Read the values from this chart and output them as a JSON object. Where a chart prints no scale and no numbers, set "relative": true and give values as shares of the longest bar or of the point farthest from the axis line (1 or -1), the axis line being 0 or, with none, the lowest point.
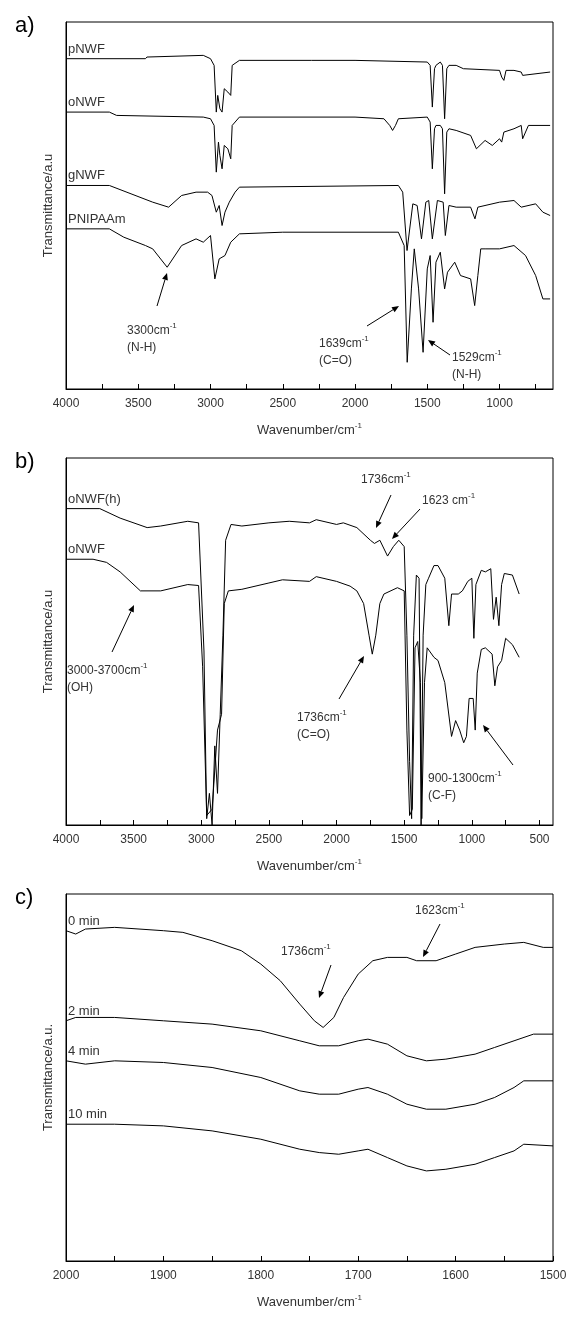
{
  "chart_data": [
    {
      "type": "line",
      "title": "a)",
      "xlabel": "Wavenumber/cm$^{-1}$",
      "ylabel": "Transmittance/a.u",
      "relative": true,
      "xlim": [
        4000,
        630
      ],
      "xticks": [
        4000,
        {
          "value": 3750,
          "label": null
        },
        3500,
        {
          "value": 3250,
          "label": null
        },
        3000,
        {
          "value": 2750,
          "label": null
        },
        2500,
        {
          "value": 2250,
          "label": null
        },
        2000,
        {
          "value": 1750,
          "label": null
        },
        1500,
        {
          "value": 1250,
          "label": null
        },
        1000,
        {
          "value": 750,
          "label": null
        }
      ],
      "series": [
        {
          "name": "pNWF",
          "color": "#000000",
          "x": [
            4000,
            3450,
            3440,
            3050,
            3000,
            2975,
            2960,
            2950,
            2935,
            2920,
            2905,
            2880,
            2860,
            2850,
            2800,
            2300,
            2000,
            1500,
            1480,
            1465,
            1450,
            1440,
            1410,
            1395,
            1380,
            1365,
            1350,
            1300,
            1250,
            1000,
            985,
            970,
            955,
            900,
            850,
            840,
            650
          ],
          "values": [
            0.99,
            0.99,
            0.995,
            1.0,
            0.99,
            0.97,
            0.83,
            0.88,
            0.84,
            0.83,
            0.9,
            0.89,
            0.88,
            0.97,
            0.985,
            0.985,
            0.985,
            0.98,
            0.97,
            0.845,
            0.96,
            0.97,
            0.98,
            0.97,
            0.81,
            0.96,
            0.97,
            0.97,
            0.96,
            0.955,
            0.935,
            0.925,
            0.955,
            0.955,
            0.95,
            0.94,
            0.95
          ]
        },
        {
          "name": "oNWF",
          "color": "#000000",
          "x": [
            4000,
            3700,
            3650,
            3050,
            3000,
            2975,
            2960,
            2945,
            2935,
            2920,
            2905,
            2880,
            2860,
            2850,
            2800,
            2000,
            1800,
            1760,
            1740,
            1720,
            1700,
            1500,
            1480,
            1465,
            1450,
            1440,
            1410,
            1395,
            1380,
            1365,
            1350,
            1300,
            1200,
            1160,
            1100,
            1050,
            1000,
            985,
            970,
            900,
            850,
            840,
            800,
            650
          ],
          "values": [
            0.83,
            0.83,
            0.82,
            0.815,
            0.81,
            0.79,
            0.65,
            0.74,
            0.7,
            0.66,
            0.73,
            0.72,
            0.69,
            0.79,
            0.815,
            0.815,
            0.81,
            0.79,
            0.775,
            0.79,
            0.81,
            0.815,
            0.8,
            0.66,
            0.78,
            0.79,
            0.79,
            0.78,
            0.585,
            0.77,
            0.78,
            0.775,
            0.76,
            0.72,
            0.745,
            0.73,
            0.75,
            0.74,
            0.77,
            0.78,
            0.79,
            0.75,
            0.79,
            0.79
          ]
        },
        {
          "name": "gNWF",
          "color": "#000000",
          "x": [
            4000,
            3700,
            3550,
            3400,
            3290,
            3200,
            3100,
            3020,
            2990,
            2960,
            2940,
            2920,
            2900,
            2870,
            2830,
            2800,
            1700,
            1670,
            1640,
            1600,
            1570,
            1540,
            1510,
            1490,
            1465,
            1430,
            1390,
            1375,
            1350,
            1300,
            1200,
            1170,
            1150,
            1000,
            900,
            850,
            750,
            700,
            650
          ],
          "values": [
            0.61,
            0.61,
            0.585,
            0.56,
            0.545,
            0.58,
            0.59,
            0.59,
            0.58,
            0.53,
            0.55,
            0.49,
            0.53,
            0.56,
            0.59,
            0.605,
            0.61,
            0.59,
            0.415,
            0.555,
            0.55,
            0.45,
            0.56,
            0.565,
            0.45,
            0.565,
            0.56,
            0.46,
            0.55,
            0.545,
            0.545,
            0.51,
            0.545,
            0.56,
            0.565,
            0.545,
            0.555,
            0.53,
            0.52
          ]
        },
        {
          "name": "PNIPAAm",
          "color": "#000000",
          "x": [
            4000,
            3700,
            3600,
            3450,
            3400,
            3300,
            3200,
            3100,
            3050,
            3000,
            2970,
            2940,
            2900,
            2860,
            2800,
            2500,
            1700,
            1660,
            1639,
            1610,
            1590,
            1560,
            1529,
            1500,
            1480,
            1460,
            1440,
            1410,
            1380,
            1360,
            1310,
            1270,
            1200,
            1172,
            1150,
            1130,
            1100,
            1000,
            900,
            820,
            750,
            700,
            650
          ],
          "values": [
            0.48,
            0.48,
            0.455,
            0.43,
            0.42,
            0.365,
            0.43,
            0.45,
            0.44,
            0.46,
            0.33,
            0.39,
            0.4,
            0.44,
            0.465,
            0.47,
            0.47,
            0.43,
            0.08,
            0.3,
            0.42,
            0.3,
            0.11,
            0.36,
            0.4,
            0.2,
            0.38,
            0.41,
            0.3,
            0.35,
            0.38,
            0.34,
            0.33,
            0.25,
            0.34,
            0.42,
            0.42,
            0.42,
            0.43,
            0.4,
            0.34,
            0.27,
            0.27
          ]
        }
      ],
      "annotations": [
        "3300cm$^{-1}$\n(N-H)",
        "1639cm$^{-1}$\n(C=O)",
        "1529cm$^{-1}$\n(N-H)"
      ]
    },
    {
      "type": "line",
      "title": "b)",
      "xlabel": "Wavenumber/cm$^{-1}$",
      "ylabel": "Transmittance/a.u",
      "relative": true,
      "xlim": [
        4000,
        400
      ],
      "xticks": [
        4000,
        {
          "value": 3750,
          "label": null
        },
        3500,
        {
          "value": 3250,
          "label": null
        },
        3000,
        {
          "value": 2750,
          "label": null
        },
        2500,
        {
          "value": 2250,
          "label": null
        },
        2000,
        {
          "value": 1750,
          "label": null
        },
        1500,
        {
          "value": 1250,
          "label": null
        },
        1000,
        {
          "value": 750,
          "label": null
        },
        500
      ],
      "series": [
        {
          "name": "oNWF(h)",
          "color": "#000000",
          "x": [
            4000,
            3750,
            3600,
            3400,
            3300,
            3100,
            3020,
            2980,
            2960,
            2940,
            2920,
            2900,
            2880,
            2860,
            2840,
            2820,
            2780,
            2700,
            2500,
            2350,
            2200,
            2150,
            2000,
            1950,
            1850,
            1750,
            1720,
            1680,
            1623,
            1580,
            1540,
            1500,
            1480,
            1460,
            1445,
            1430,
            1410,
            1390,
            1375,
            1360,
            1340,
            1320,
            1280,
            1250,
            1200,
            1170,
            1150,
            1100,
            1070,
            1030,
            1000,
            985,
            970,
            930,
            900,
            860,
            840,
            820,
            800,
            780,
            760,
            700,
            650
          ],
          "values": [
            1.0,
            1.0,
            0.97,
            0.94,
            0.945,
            0.96,
            0.955,
            0.55,
            0.02,
            0.1,
            0.0,
            0.25,
            0.1,
            0.35,
            0.6,
            0.9,
            0.95,
            0.945,
            0.955,
            0.96,
            0.955,
            0.965,
            0.95,
            0.955,
            0.94,
            0.9,
            0.89,
            0.9,
            0.85,
            0.88,
            0.9,
            0.88,
            0.6,
            0.2,
            0.02,
            0.6,
            0.79,
            0.78,
            0.0,
            0.6,
            0.76,
            0.78,
            0.82,
            0.82,
            0.78,
            0.63,
            0.73,
            0.73,
            0.74,
            0.77,
            0.78,
            0.59,
            0.76,
            0.805,
            0.8,
            0.81,
            0.65,
            0.72,
            0.63,
            0.76,
            0.795,
            0.79,
            0.73
          ]
        },
        {
          "name": "oNWF",
          "color": "#000000",
          "x": [
            4000,
            3800,
            3700,
            3600,
            3450,
            3300,
            3100,
            3020,
            2990,
            2960,
            2920,
            2880,
            2850,
            2830,
            2800,
            2700,
            2500,
            2400,
            2200,
            2150,
            2000,
            1900,
            1850,
            1800,
            1760,
            1736,
            1710,
            1680,
            1650,
            1550,
            1500,
            1480,
            1460,
            1440,
            1420,
            1400,
            1380,
            1370,
            1350,
            1330,
            1280,
            1250,
            1200,
            1150,
            1120,
            1090,
            1060,
            1040,
            1020,
            990,
            975,
            960,
            930,
            900,
            850,
            830,
            810,
            780,
            750,
            700,
            650
          ],
          "values": [
            0.84,
            0.84,
            0.83,
            0.8,
            0.74,
            0.74,
            0.76,
            0.757,
            0.5,
            0.03,
            0.05,
            0.3,
            0.35,
            0.7,
            0.74,
            0.745,
            0.765,
            0.775,
            0.77,
            0.785,
            0.77,
            0.755,
            0.74,
            0.7,
            0.6,
            0.54,
            0.6,
            0.7,
            0.73,
            0.75,
            0.74,
            0.3,
            0.03,
            0.05,
            0.56,
            0.58,
            0.45,
            0.02,
            0.45,
            0.56,
            0.53,
            0.52,
            0.45,
            0.28,
            0.33,
            0.3,
            0.26,
            0.28,
            0.4,
            0.4,
            0.3,
            0.48,
            0.555,
            0.56,
            0.54,
            0.44,
            0.5,
            0.52,
            0.59,
            0.57,
            0.53
          ]
        }
      ],
      "annotations": [
        "3000-3700cm$^{-1}$\n(OH)",
        "1736cm$^{-1}$\n(C=O)",
        "900-1300cm$^{-1}$\n(C-F)",
        "1736cm$^{-1}$",
        "1623 cm$^{-1}$"
      ]
    },
    {
      "type": "line",
      "title": "c)",
      "xlabel": "Wavenumber/cm$^{-1}$",
      "ylabel": "Transmittance/a.u.",
      "relative": true,
      "xlim": [
        2000,
        1500
      ],
      "xticks": [
        2000,
        {
          "value": 1950,
          "label": null
        },
        1900,
        {
          "value": 1850,
          "label": null
        },
        1800,
        {
          "value": 1750,
          "label": null
        },
        1700,
        {
          "value": 1650,
          "label": null
        },
        1600,
        {
          "value": 1550,
          "label": null
        },
        1500
      ],
      "series": [
        {
          "name": "0 min",
          "color": "#000000",
          "x": [
            2000,
            1990,
            1980,
            1950,
            1900,
            1880,
            1850,
            1820,
            1800,
            1780,
            1760,
            1745,
            1736,
            1725,
            1715,
            1700,
            1685,
            1670,
            1650,
            1640,
            1620,
            1600,
            1580,
            1550,
            1530,
            1510,
            1500
          ],
          "values": [
            0.99,
            0.98,
            0.995,
            1.0,
            0.99,
            0.985,
            0.96,
            0.93,
            0.89,
            0.84,
            0.77,
            0.72,
            0.7,
            0.73,
            0.79,
            0.86,
            0.9,
            0.91,
            0.91,
            0.9,
            0.9,
            0.92,
            0.94,
            0.95,
            0.955,
            0.94,
            0.94
          ]
        },
        {
          "name": "2 min",
          "color": "#000000",
          "x": [
            2000,
            1990,
            1950,
            1900,
            1850,
            1800,
            1760,
            1740,
            1720,
            1700,
            1690,
            1670,
            1650,
            1630,
            1610,
            1580,
            1560,
            1540,
            1520,
            1500
          ],
          "values": [
            0.72,
            0.73,
            0.73,
            0.72,
            0.71,
            0.69,
            0.66,
            0.645,
            0.645,
            0.66,
            0.665,
            0.65,
            0.615,
            0.6,
            0.605,
            0.62,
            0.64,
            0.66,
            0.68,
            0.68
          ]
        },
        {
          "name": "4 min",
          "color": "#000000",
          "x": [
            2000,
            1980,
            1950,
            1900,
            1850,
            1800,
            1760,
            1740,
            1720,
            1700,
            1690,
            1670,
            1650,
            1630,
            1610,
            1580,
            1560,
            1540,
            1530,
            1500
          ],
          "values": [
            0.6,
            0.59,
            0.6,
            0.595,
            0.58,
            0.55,
            0.51,
            0.5,
            0.5,
            0.515,
            0.52,
            0.5,
            0.47,
            0.455,
            0.455,
            0.47,
            0.49,
            0.52,
            0.54,
            0.54
          ]
        },
        {
          "name": "10 min",
          "color": "#000000",
          "x": [
            2000,
            1950,
            1900,
            1850,
            1800,
            1760,
            1740,
            1720,
            1700,
            1690,
            1670,
            1650,
            1630,
            1610,
            1580,
            1560,
            1540,
            1530,
            1500
          ],
          "values": [
            0.41,
            0.41,
            0.405,
            0.39,
            0.365,
            0.335,
            0.325,
            0.32,
            0.33,
            0.335,
            0.31,
            0.285,
            0.27,
            0.275,
            0.29,
            0.31,
            0.33,
            0.35,
            0.345
          ]
        }
      ],
      "annotations": [
        "1736cm$^{-1}$",
        "1623cm$^{-1}$"
      ]
    }
  ]
}
